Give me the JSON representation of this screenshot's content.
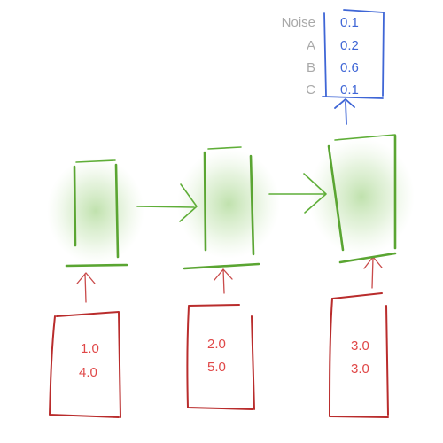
{
  "inputs": [
    {
      "line1": "1.0",
      "line2": "4.0"
    },
    {
      "line1": "2.0",
      "line2": "5.0"
    },
    {
      "line1": "3.0",
      "line2": "3.0"
    }
  ],
  "output": {
    "labels": [
      "Noise",
      "A",
      "B",
      "C"
    ],
    "values": [
      "0.1",
      "0.2",
      "0.6",
      "0.1"
    ]
  },
  "colors": {
    "input_box": "#b92c2c",
    "input_text": "#e04848",
    "hidden_box": "#5aa532",
    "hidden_glow": "#8cc96a",
    "output": "#3f66d6",
    "labels": "#a9a9a9"
  },
  "icons": [
    "up-arrow-icon",
    "right-arrow-icon"
  ]
}
